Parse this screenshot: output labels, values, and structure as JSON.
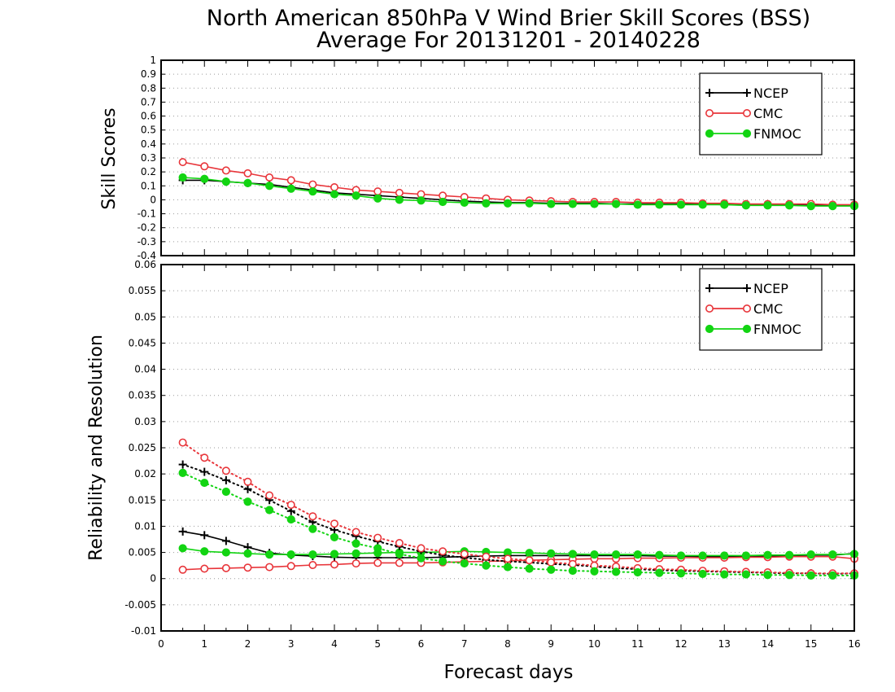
{
  "title": {
    "line1": "North American 850hPa V Wind Brier Skill Scores (BSS)",
    "line2": "Average For 20131201 - 20140228"
  },
  "colors": {
    "NCEP": "#000000",
    "CMC": "#e8353a",
    "FNMOC": "#12d412"
  },
  "chart_data": [
    {
      "type": "line",
      "ylabel": "Skill Scores",
      "xlabel": "",
      "xlim": [
        0,
        16
      ],
      "ylim": [
        -0.4,
        1
      ],
      "y_ticks": [
        "1",
        "0.9",
        "0.8",
        "0.7",
        "0.6",
        "0.5",
        "0.4",
        "0.3",
        "0.2",
        "0.1",
        "0",
        "-0.1",
        "-0.2",
        "-0.3",
        "-0.4"
      ],
      "grid": true,
      "legend_position": "top-right",
      "x": [
        0.5,
        1,
        1.5,
        2,
        2.5,
        3,
        3.5,
        4,
        4.5,
        5,
        5.5,
        6,
        6.5,
        7,
        7.5,
        8,
        8.5,
        9,
        9.5,
        10,
        10.5,
        11,
        11.5,
        12,
        12.5,
        13,
        13.5,
        14,
        14.5,
        15,
        15.5,
        16
      ],
      "series": [
        {
          "name": "NCEP",
          "marker": "plus",
          "line": "solid",
          "values": [
            0.14,
            0.14,
            0.13,
            0.12,
            0.11,
            0.09,
            0.07,
            0.05,
            0.04,
            0.03,
            0.02,
            0.01,
            0.0,
            -0.01,
            -0.015,
            -0.02,
            -0.02,
            -0.025,
            -0.025,
            -0.025,
            -0.03,
            -0.03,
            -0.03,
            -0.03,
            -0.03,
            -0.035,
            -0.035,
            -0.035,
            -0.035,
            -0.04,
            -0.04,
            -0.04
          ]
        },
        {
          "name": "CMC",
          "marker": "open-circle",
          "line": "solid",
          "values": [
            0.27,
            0.24,
            0.21,
            0.19,
            0.16,
            0.14,
            0.11,
            0.09,
            0.07,
            0.06,
            0.05,
            0.04,
            0.03,
            0.02,
            0.01,
            0.0,
            -0.005,
            -0.01,
            -0.015,
            -0.015,
            -0.015,
            -0.02,
            -0.02,
            -0.02,
            -0.025,
            -0.025,
            -0.03,
            -0.03,
            -0.03,
            -0.03,
            -0.035,
            -0.035
          ]
        },
        {
          "name": "FNMOC",
          "marker": "filled-circle",
          "line": "solid",
          "values": [
            0.16,
            0.15,
            0.13,
            0.12,
            0.1,
            0.08,
            0.06,
            0.04,
            0.03,
            0.01,
            0.0,
            -0.005,
            -0.015,
            -0.02,
            -0.025,
            -0.025,
            -0.025,
            -0.03,
            -0.03,
            -0.03,
            -0.03,
            -0.035,
            -0.035,
            -0.035,
            -0.035,
            -0.035,
            -0.04,
            -0.04,
            -0.04,
            -0.045,
            -0.045,
            -0.045
          ]
        }
      ]
    },
    {
      "type": "line",
      "ylabel": "Reliability and Resolution",
      "xlabel": "Forecast days",
      "xlim": [
        0,
        16
      ],
      "ylim": [
        -0.01,
        0.06
      ],
      "x_ticks": [
        "0",
        "1",
        "2",
        "3",
        "4",
        "5",
        "6",
        "7",
        "8",
        "9",
        "10",
        "11",
        "12",
        "13",
        "14",
        "15",
        "16"
      ],
      "y_ticks": [
        "0.06",
        "0.055",
        "0.05",
        "0.045",
        "0.04",
        "0.035",
        "0.03",
        "0.025",
        "0.02",
        "0.015",
        "0.01",
        "0.005",
        "0",
        "-0.005",
        "-0.01"
      ],
      "grid": true,
      "legend_position": "top-right",
      "x": [
        0.5,
        1,
        1.5,
        2,
        2.5,
        3,
        3.5,
        4,
        4.5,
        5,
        5.5,
        6,
        6.5,
        7,
        7.5,
        8,
        8.5,
        9,
        9.5,
        10,
        10.5,
        11,
        11.5,
        12,
        12.5,
        13,
        13.5,
        14,
        14.5,
        15,
        15.5,
        16
      ],
      "series": [
        {
          "name": "NCEP",
          "marker": "plus",
          "line": "solid",
          "values": [
            0.009,
            0.0083,
            0.0072,
            0.006,
            0.0049,
            0.0045,
            0.0043,
            0.0041,
            0.004,
            0.004,
            0.004,
            0.004,
            0.0041,
            0.0042,
            0.0043,
            0.0044,
            0.0044,
            0.0044,
            0.0044,
            0.0044,
            0.0044,
            0.0044,
            0.0043,
            0.0043,
            0.0042,
            0.0042,
            0.0043,
            0.0043,
            0.0044,
            0.0045,
            0.0045,
            0.0048
          ]
        },
        {
          "name": "CMC",
          "marker": "open-circle",
          "line": "solid",
          "values": [
            0.0017,
            0.0019,
            0.002,
            0.0021,
            0.0022,
            0.0024,
            0.0026,
            0.0027,
            0.0029,
            0.003,
            0.003,
            0.003,
            0.0031,
            0.0032,
            0.0033,
            0.0034,
            0.0035,
            0.0036,
            0.0037,
            0.0038,
            0.0038,
            0.0039,
            0.0039,
            0.004,
            0.004,
            0.004,
            0.0041,
            0.0041,
            0.0042,
            0.0042,
            0.0042,
            0.0038
          ]
        },
        {
          "name": "FNMOC",
          "marker": "filled-circle",
          "line": "solid",
          "values": [
            0.0058,
            0.0052,
            0.005,
            0.0048,
            0.0046,
            0.0046,
            0.0046,
            0.0047,
            0.0048,
            0.0049,
            0.005,
            0.005,
            0.0051,
            0.0052,
            0.0051,
            0.005,
            0.0049,
            0.0048,
            0.0047,
            0.0046,
            0.0046,
            0.0046,
            0.0045,
            0.0044,
            0.0044,
            0.0044,
            0.0044,
            0.0045,
            0.0045,
            0.0046,
            0.0046,
            0.0047
          ]
        },
        {
          "name": "",
          "legend": false,
          "color_of": "NCEP",
          "marker": "plus",
          "line": "dotted",
          "values": [
            0.0218,
            0.0204,
            0.0188,
            0.0171,
            0.015,
            0.0129,
            0.0108,
            0.0093,
            0.0081,
            0.0071,
            0.0061,
            0.0052,
            0.0045,
            0.004,
            0.0036,
            0.0033,
            0.0031,
            0.0028,
            0.0026,
            0.0023,
            0.002,
            0.0018,
            0.0016,
            0.0015,
            0.0014,
            0.0013,
            0.0012,
            0.0011,
            0.001,
            0.001,
            0.0009,
            0.001
          ]
        },
        {
          "name": "",
          "legend": false,
          "color_of": "CMC",
          "marker": "open-circle",
          "line": "dotted",
          "values": [
            0.026,
            0.0231,
            0.0206,
            0.0185,
            0.0159,
            0.0141,
            0.0119,
            0.0105,
            0.0089,
            0.0078,
            0.0068,
            0.0058,
            0.0052,
            0.0047,
            0.0042,
            0.0038,
            0.0035,
            0.0031,
            0.0028,
            0.0025,
            0.0023,
            0.002,
            0.0018,
            0.0017,
            0.0015,
            0.0014,
            0.0013,
            0.0012,
            0.0011,
            0.001,
            0.001,
            0.001
          ]
        },
        {
          "name": "",
          "legend": false,
          "color_of": "FNMOC",
          "marker": "filled-circle",
          "line": "dotted",
          "values": [
            0.0202,
            0.0183,
            0.0166,
            0.0147,
            0.0131,
            0.0113,
            0.0095,
            0.0079,
            0.0067,
            0.0058,
            0.0047,
            0.0039,
            0.0033,
            0.0029,
            0.0025,
            0.0022,
            0.0019,
            0.0017,
            0.0015,
            0.0014,
            0.0013,
            0.0012,
            0.0011,
            0.001,
            0.0009,
            0.0008,
            0.0008,
            0.0007,
            0.0007,
            0.0006,
            0.0006,
            0.0006
          ]
        }
      ]
    }
  ]
}
